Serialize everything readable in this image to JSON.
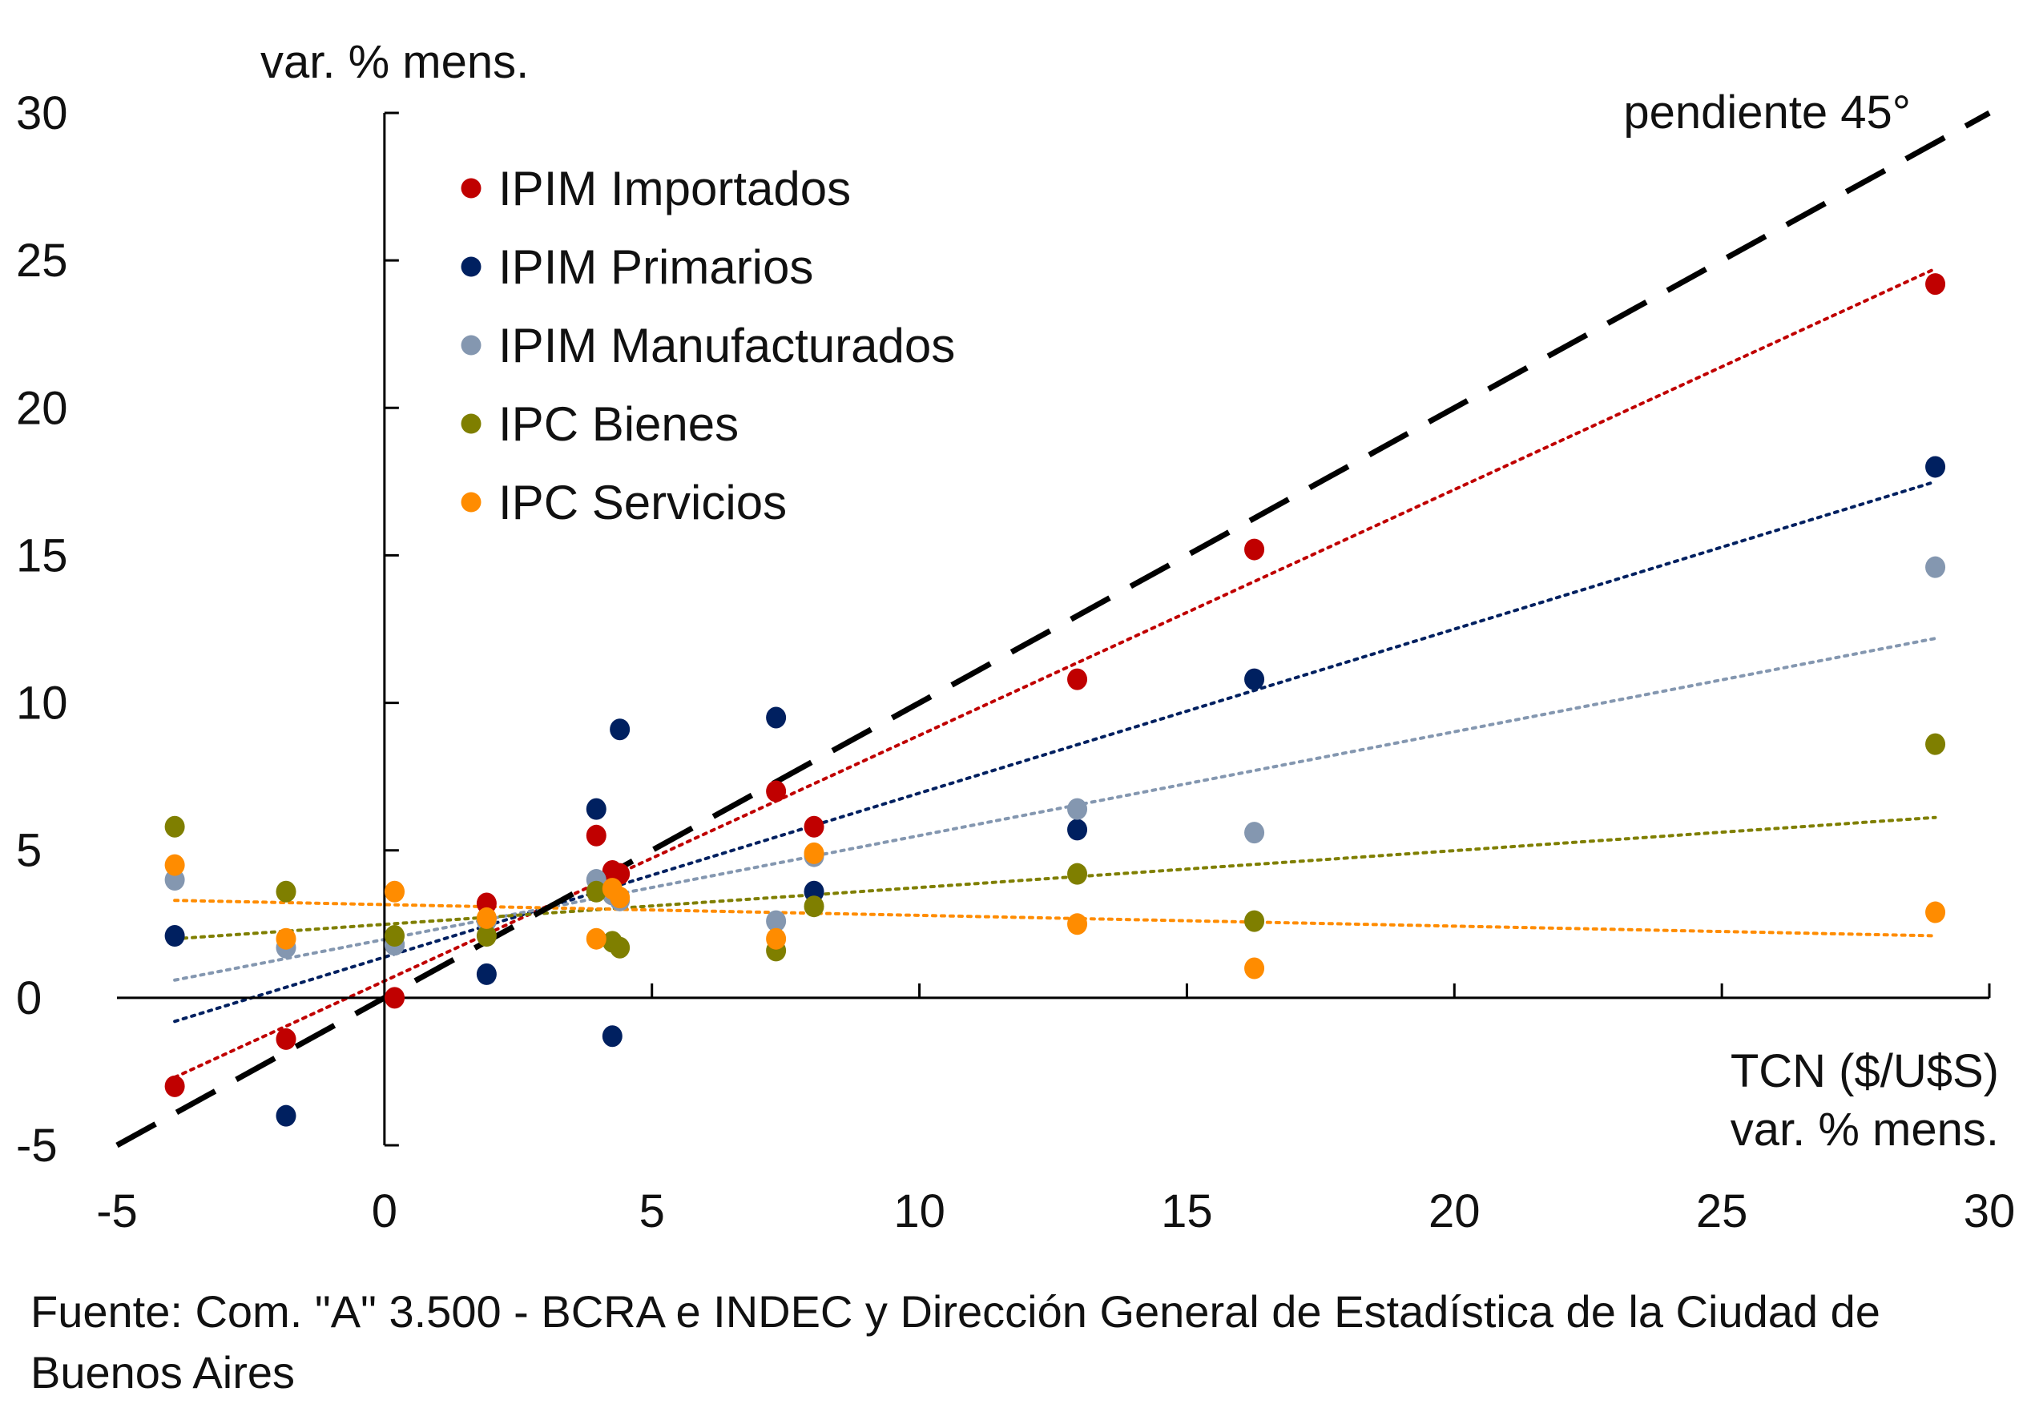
{
  "chart_data": {
    "type": "scatter",
    "ylabel": "var. % mens.",
    "xlabel_lines": [
      "TCN ($/U$S)",
      "var. % mens."
    ],
    "annotation": "pendiente 45°",
    "xlim": [
      -5,
      30
    ],
    "ylim": [
      -5,
      30
    ],
    "xticks": [
      -5,
      0,
      5,
      10,
      15,
      20,
      25,
      30
    ],
    "yticks": [
      -5,
      0,
      5,
      10,
      15,
      20,
      25,
      30
    ],
    "grid": false,
    "legend_position": "top-left",
    "reference_line": {
      "label": "pendiente 45°",
      "slope": 1,
      "intercept": 0,
      "style": "dashed",
      "color": "#000000"
    },
    "x": [
      -3.92,
      -1.84,
      0.19,
      1.91,
      3.96,
      4.26,
      4.4,
      7.32,
      8.03,
      12.95,
      16.26,
      28.99
    ],
    "series": [
      {
        "name": "IPIM Importados",
        "color": "#c00000",
        "y": [
          -3.0,
          -1.4,
          0.0,
          3.2,
          5.5,
          4.3,
          4.2,
          7.0,
          5.8,
          10.8,
          15.2,
          24.2
        ],
        "trend": {
          "slope": 0.833,
          "intercept": 0.57
        }
      },
      {
        "name": "IPIM Primarios",
        "color": "#002060",
        "y": [
          2.1,
          -4.0,
          1.8,
          0.8,
          6.4,
          -1.3,
          9.1,
          9.5,
          3.6,
          5.7,
          10.8,
          18.0
        ],
        "trend": {
          "slope": 0.556,
          "intercept": 1.38
        }
      },
      {
        "name": "IPIM Manufacturados",
        "color": "#8497b0",
        "y": [
          4.0,
          1.7,
          1.8,
          2.6,
          4.0,
          3.5,
          3.3,
          2.6,
          4.8,
          6.4,
          5.6,
          14.6
        ],
        "trend": {
          "slope": 0.352,
          "intercept": 1.98
        }
      },
      {
        "name": "IPC Bienes",
        "color": "#7f7f00",
        "y": [
          5.8,
          3.6,
          2.1,
          2.1,
          3.6,
          1.9,
          1.7,
          1.6,
          3.1,
          4.2,
          2.6,
          8.6
        ],
        "trend": {
          "slope": 0.125,
          "intercept": 2.49
        }
      },
      {
        "name": "IPC Servicios",
        "color": "#ff8c00",
        "y": [
          4.5,
          2.0,
          3.6,
          2.7,
          2.0,
          3.7,
          3.4,
          2.0,
          4.9,
          2.5,
          1.0,
          2.9
        ],
        "trend": {
          "slope": -0.0365,
          "intercept": 3.16
        }
      }
    ]
  },
  "footer": "Fuente: Com. \"A\" 3.500 - BCRA e INDEC y Dirección General de Estadística de la Ciudad de Buenos Aires"
}
